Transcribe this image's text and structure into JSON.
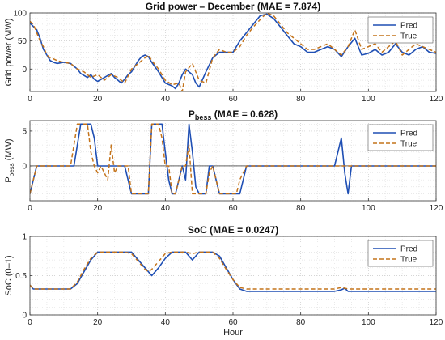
{
  "colors": {
    "pred": "#1f4fb4",
    "true": "#c4731a",
    "grid": "#d0d0d0",
    "axis": "#333333",
    "zero": "#000000"
  },
  "x_axis": {
    "label": "Hour",
    "range": [
      0,
      120
    ],
    "ticks": [
      0,
      20,
      40,
      60,
      80,
      100,
      120
    ]
  },
  "chart_data": [
    {
      "type": "line",
      "title": "Grid power – December (MAE = 7.874)",
      "ylabel": "Grid power (MW)",
      "ylim": [
        -40,
        100
      ],
      "yticks": [
        0,
        50,
        100
      ],
      "grid": true,
      "legend": "top-right",
      "legend_entries": [
        "Pred",
        "True"
      ],
      "series": [
        {
          "name": "Pred",
          "x": [
            0,
            2,
            3,
            4,
            5,
            6,
            7,
            8,
            10,
            12,
            14,
            15,
            17,
            18,
            19,
            20,
            22,
            24,
            25,
            26,
            27,
            28,
            29,
            30,
            31,
            32,
            33,
            34,
            35,
            36,
            38,
            40,
            42,
            43,
            44,
            45,
            46,
            47,
            48,
            49,
            50,
            52,
            54,
            56,
            58,
            60,
            62,
            64,
            66,
            68,
            70,
            72,
            74,
            76,
            78,
            80,
            82,
            84,
            86,
            88,
            90,
            92,
            94,
            96,
            98,
            100,
            102,
            104,
            106,
            108,
            110,
            112,
            114,
            116,
            118,
            120
          ],
          "y": [
            82,
            70,
            55,
            35,
            25,
            15,
            12,
            10,
            12,
            10,
            0,
            -8,
            -15,
            -10,
            -18,
            -22,
            -15,
            -8,
            -15,
            -20,
            -25,
            -18,
            -10,
            -5,
            5,
            15,
            22,
            25,
            22,
            12,
            -5,
            -25,
            -30,
            -35,
            -25,
            -10,
            0,
            -5,
            -10,
            -25,
            -32,
            -5,
            20,
            30,
            30,
            30,
            50,
            65,
            80,
            95,
            98,
            90,
            75,
            60,
            45,
            40,
            30,
            30,
            35,
            40,
            35,
            22,
            40,
            55,
            25,
            28,
            35,
            25,
            30,
            45,
            30,
            25,
            35,
            40,
            30,
            28
          ]
        },
        {
          "name": "True",
          "x": [
            0,
            1,
            2,
            3,
            4,
            5,
            6,
            7,
            8,
            10,
            12,
            14,
            16,
            18,
            20,
            22,
            24,
            26,
            28,
            30,
            32,
            34,
            35,
            36,
            38,
            40,
            42,
            44,
            45,
            46,
            48,
            50,
            52,
            54,
            56,
            58,
            60,
            62,
            64,
            66,
            68,
            70,
            72,
            74,
            76,
            78,
            80,
            82,
            84,
            86,
            88,
            90,
            92,
            94,
            96,
            98,
            100,
            102,
            104,
            106,
            108,
            110,
            112,
            114,
            116,
            118,
            120
          ],
          "y": [
            85,
            80,
            65,
            50,
            40,
            25,
            20,
            18,
            15,
            12,
            10,
            0,
            -5,
            -15,
            -10,
            -20,
            -10,
            -15,
            -25,
            0,
            10,
            20,
            25,
            15,
            0,
            -20,
            -28,
            -25,
            -40,
            -5,
            10,
            -20,
            -25,
            20,
            35,
            30,
            30,
            40,
            60,
            75,
            88,
            100,
            95,
            80,
            65,
            55,
            45,
            35,
            35,
            40,
            45,
            35,
            25,
            40,
            70,
            35,
            40,
            45,
            30,
            40,
            50,
            25,
            35,
            45,
            40,
            35,
            30
          ]
        }
      ]
    },
    {
      "type": "line",
      "title": "P",
      "title_sub": "bess",
      "title_rest": " (MAE = 0.628)",
      "ylabel": "P",
      "ylabel_sub": "bess",
      "ylabel_rest": " (MW)",
      "ylim": [
        -5,
        6.5
      ],
      "yticks": [
        0,
        5
      ],
      "grid": true,
      "legend": "top-right",
      "legend_entries": [
        "Pred",
        "True"
      ],
      "series": [
        {
          "name": "Pred",
          "x": [
            0,
            1,
            2,
            10,
            13,
            15,
            16,
            18,
            19,
            20,
            21,
            22,
            23,
            24,
            25,
            26,
            28,
            30,
            32,
            34,
            35,
            36,
            37,
            38,
            39,
            40,
            41,
            42,
            43,
            44,
            45,
            46,
            47,
            48,
            49,
            50,
            51,
            52,
            53,
            54,
            56,
            58,
            60,
            62,
            63,
            64,
            66,
            70,
            80,
            90,
            91,
            92,
            93,
            94,
            95,
            96,
            100,
            110,
            120
          ],
          "y": [
            -4,
            -2,
            0,
            0,
            0,
            6,
            6,
            6,
            4,
            0,
            0,
            0,
            0,
            0,
            0,
            0,
            0,
            -4,
            -4,
            -4,
            -4,
            6,
            6,
            6,
            6,
            2,
            -2,
            -4,
            -4,
            -2,
            0,
            -2,
            6,
            2,
            -3,
            -4,
            -4,
            -4,
            0,
            0,
            -4,
            -4,
            -4,
            -4,
            -2,
            0,
            0,
            0,
            0,
            0,
            2,
            4,
            -1,
            -4,
            0,
            0,
            0,
            0,
            0
          ]
        },
        {
          "name": "True",
          "x": [
            0,
            1,
            2,
            10,
            12,
            14,
            16,
            17,
            18,
            19,
            20,
            21,
            22,
            23,
            24,
            25,
            26,
            27,
            28,
            29,
            30,
            32,
            34,
            35,
            36,
            37,
            38,
            39,
            40,
            41,
            42,
            43,
            44,
            45,
            46,
            47,
            48,
            49,
            50,
            51,
            52,
            53,
            54,
            56,
            58,
            60,
            61,
            62,
            64,
            66,
            70,
            80,
            90,
            91,
            92,
            93,
            94,
            95,
            96,
            100,
            110,
            120
          ],
          "y": [
            -4,
            -2,
            0,
            0,
            0,
            6,
            6,
            6,
            2,
            0,
            -1,
            0,
            -1,
            -2,
            3,
            -1,
            0,
            0,
            0,
            0,
            -4,
            -4,
            -4,
            -4,
            6,
            6,
            6,
            4,
            0,
            0,
            -4,
            -4,
            -2,
            0,
            0,
            3,
            -4,
            -4,
            -4,
            -4,
            -4,
            -1,
            0,
            -4,
            -4,
            -4,
            -4,
            -2,
            0,
            0,
            0,
            0,
            0,
            0,
            0,
            0,
            0,
            0,
            0,
            0,
            0,
            0
          ]
        }
      ]
    },
    {
      "type": "line",
      "title": "SoC (MAE = 0.0247)",
      "ylabel": "SoC (0–1)",
      "ylim": [
        0,
        1
      ],
      "yticks": [
        0,
        0.5,
        1
      ],
      "grid": true,
      "legend": "top-right",
      "legend_entries": [
        "Pred",
        "True"
      ],
      "series": [
        {
          "name": "Pred",
          "x": [
            0,
            1,
            2,
            12,
            14,
            16,
            18,
            20,
            22,
            24,
            26,
            28,
            30,
            32,
            34,
            36,
            38,
            40,
            42,
            44,
            46,
            47,
            48,
            50,
            52,
            54,
            56,
            58,
            60,
            62,
            64,
            80,
            90,
            92,
            93,
            94,
            96,
            100,
            110,
            120
          ],
          "y": [
            0.38,
            0.33,
            0.33,
            0.33,
            0.4,
            0.55,
            0.7,
            0.8,
            0.8,
            0.8,
            0.8,
            0.8,
            0.8,
            0.7,
            0.6,
            0.5,
            0.6,
            0.72,
            0.8,
            0.8,
            0.8,
            0.75,
            0.7,
            0.8,
            0.8,
            0.8,
            0.75,
            0.6,
            0.45,
            0.33,
            0.3,
            0.3,
            0.3,
            0.32,
            0.34,
            0.3,
            0.3,
            0.3,
            0.3,
            0.3
          ]
        },
        {
          "name": "True",
          "x": [
            0,
            1,
            2,
            12,
            14,
            16,
            18,
            20,
            22,
            24,
            26,
            28,
            30,
            32,
            34,
            35,
            36,
            38,
            40,
            42,
            44,
            46,
            48,
            50,
            52,
            54,
            56,
            58,
            60,
            62,
            64,
            80,
            90,
            92,
            94,
            96,
            100,
            110,
            120
          ],
          "y": [
            0.38,
            0.33,
            0.33,
            0.33,
            0.42,
            0.58,
            0.72,
            0.8,
            0.8,
            0.8,
            0.8,
            0.8,
            0.78,
            0.68,
            0.58,
            0.55,
            0.58,
            0.68,
            0.78,
            0.8,
            0.8,
            0.8,
            0.78,
            0.8,
            0.8,
            0.8,
            0.72,
            0.58,
            0.45,
            0.35,
            0.33,
            0.33,
            0.33,
            0.35,
            0.33,
            0.33,
            0.33,
            0.33,
            0.33
          ]
        }
      ]
    }
  ]
}
